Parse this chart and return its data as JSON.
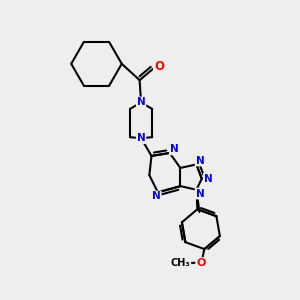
{
  "bg_color": "#eeeeee",
  "bond_color": "#000000",
  "N_color": "#0000ff",
  "O_color": "#ff0000",
  "line_width": 1.5,
  "fig_w": 3.0,
  "fig_h": 3.0,
  "dpi": 100,
  "xlim": [
    0,
    10
  ],
  "ylim": [
    0,
    10
  ]
}
